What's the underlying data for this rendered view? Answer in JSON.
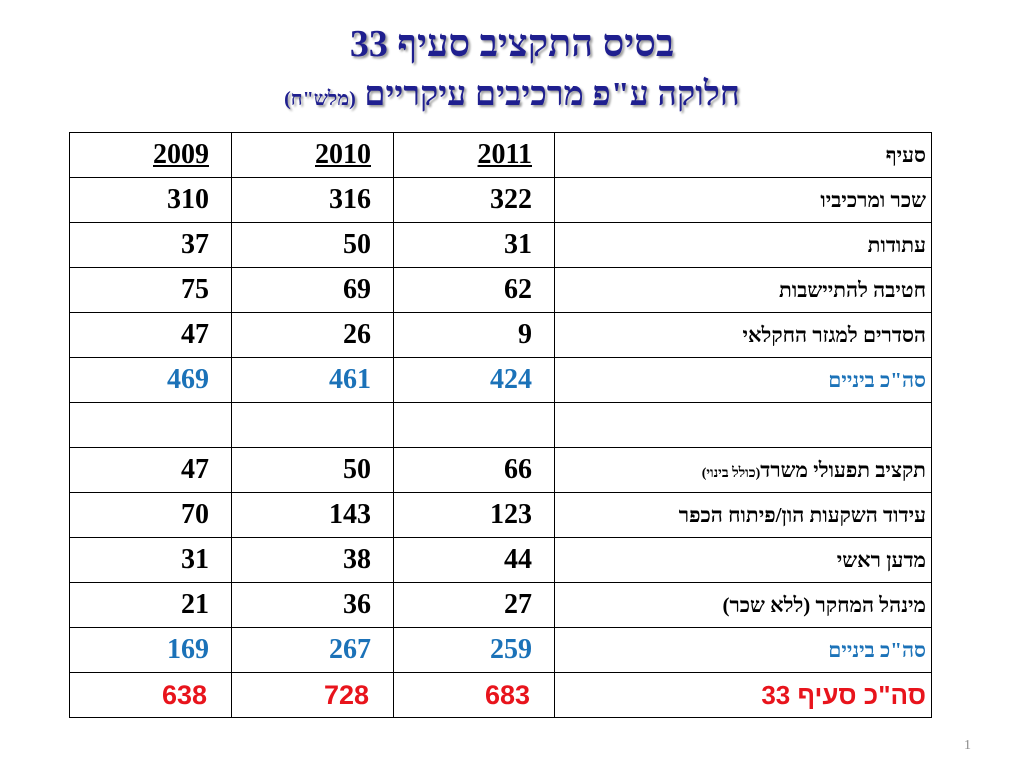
{
  "title": {
    "line1": "בסיס התקציב סעיף 33",
    "line2_main": "חלוקה ע\"פ מרכיבים עיקריים",
    "line2_small": "(מלש\"ח)"
  },
  "table": {
    "header": {
      "label": "סעיף",
      "y2011": "2011",
      "y2010": "2010",
      "y2009": "2009"
    },
    "rows": [
      {
        "label": "שכר ומרכיביו",
        "note": "",
        "v2011": "322",
        "v2010": "316",
        "v2009": "310"
      },
      {
        "label": "עתודות",
        "note": "",
        "v2011": "31",
        "v2010": "50",
        "v2009": "37"
      },
      {
        "label": "חטיבה להתיישבות",
        "note": "",
        "v2011": "62",
        "v2010": "69",
        "v2009": "75"
      },
      {
        "label": "הסדרים למגזר החקלאי",
        "note": "",
        "v2011": "9",
        "v2010": "26",
        "v2009": "47"
      },
      {
        "label": "סה\"כ ביניים",
        "note": "",
        "v2011": "424",
        "v2010": "461",
        "v2009": "469"
      },
      {
        "label": "",
        "note": "",
        "v2011": "",
        "v2010": "",
        "v2009": ""
      },
      {
        "label": "תקציב תפעולי משרד",
        "note": "(כולל בינוי)",
        "v2011": "66",
        "v2010": "50",
        "v2009": "47"
      },
      {
        "label": "עידוד השקעות הון/פיתוח הכפר",
        "note": "",
        "v2011": "123",
        "v2010": "143",
        "v2009": "70"
      },
      {
        "label": "מדען ראשי",
        "note": "",
        "v2011": "44",
        "v2010": "38",
        "v2009": "31"
      },
      {
        "label": "מינהל המחקר (ללא שכר)",
        "note": "",
        "v2011": "27",
        "v2010": "36",
        "v2009": "21"
      },
      {
        "label": "סה\"כ ביניים",
        "note": "",
        "v2011": "259",
        "v2010": "267",
        "v2009": "169"
      },
      {
        "label": "סה\"כ סעיף 33",
        "note": "",
        "v2011": "683",
        "v2010": "728",
        "v2009": "638"
      }
    ]
  },
  "colors": {
    "title": "#1f1f8f",
    "subtotal": "#1b72b8",
    "total": "#e8141c"
  },
  "page_number": "1"
}
